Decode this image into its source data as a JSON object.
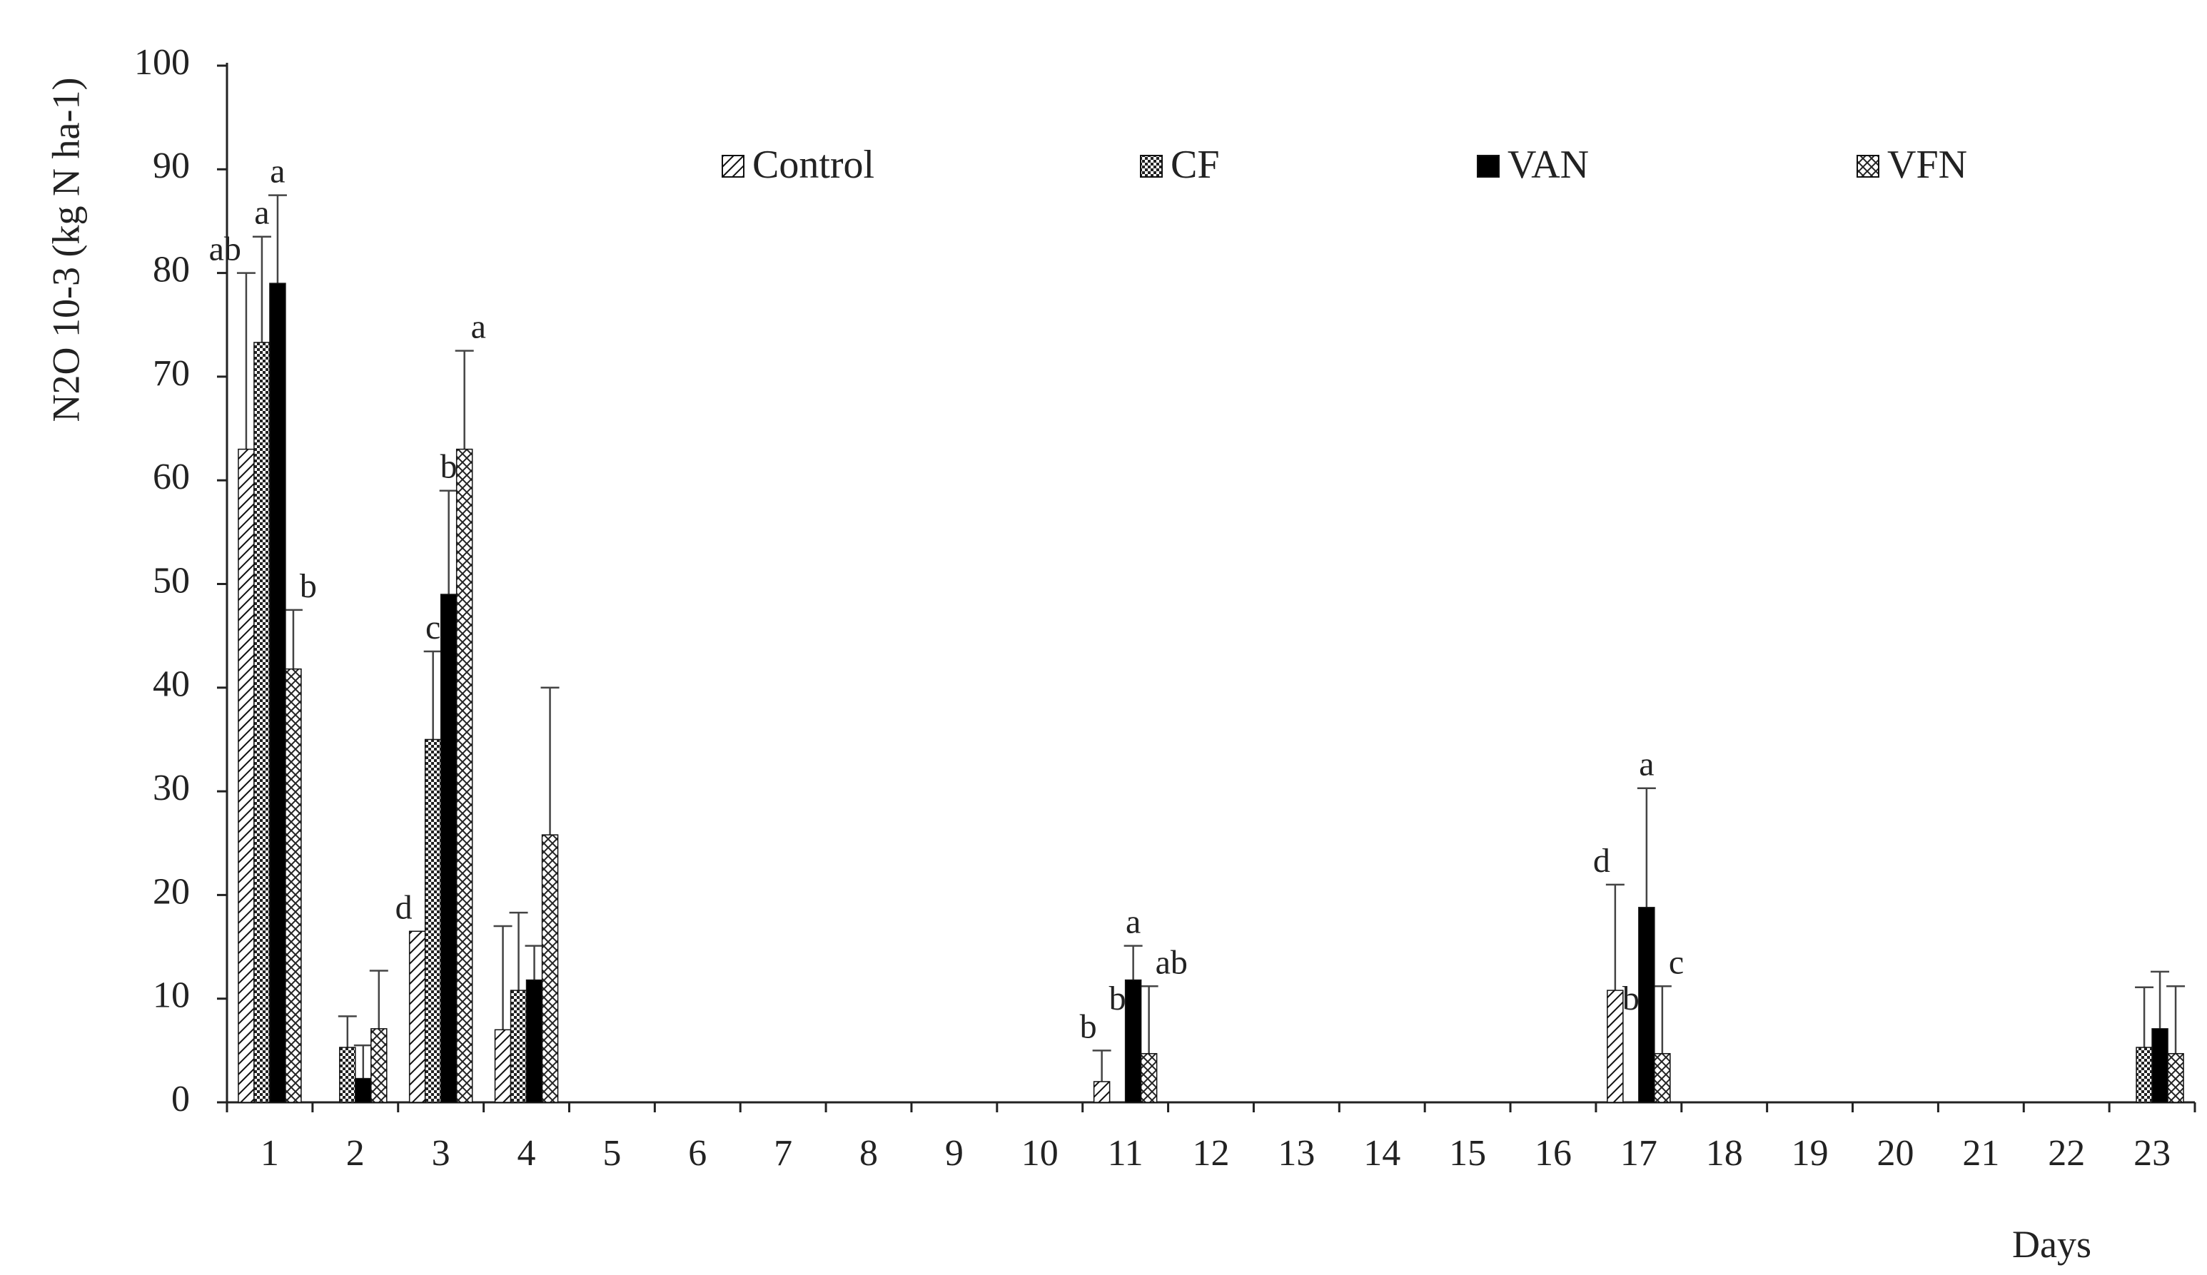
{
  "chart_data": {
    "type": "bar",
    "title": "",
    "ylabel": "N2O 10-3 (kg N ha-1)",
    "xlabel": "Days",
    "ylim": [
      0,
      100
    ],
    "yticks": [
      0,
      10,
      20,
      30,
      40,
      50,
      60,
      70,
      80,
      90,
      100
    ],
    "categories": [
      "1",
      "2",
      "3",
      "4",
      "5",
      "6",
      "7",
      "8",
      "9",
      "10",
      "11",
      "12",
      "13",
      "14",
      "15",
      "16",
      "17",
      "18",
      "19",
      "20",
      "21",
      "22",
      "23"
    ],
    "legend_position": "top, inside plot",
    "grid": false,
    "series": [
      {
        "name": "Control",
        "pattern": "diagonal-hatch",
        "values": [
          63,
          0,
          16.5,
          7,
          0,
          0,
          0,
          0,
          0,
          0,
          2,
          0,
          0,
          0,
          0,
          0,
          10.8,
          0,
          0,
          0,
          0,
          0,
          0
        ],
        "errors": [
          17,
          0,
          0,
          10,
          0,
          0,
          0,
          0,
          0,
          0,
          3,
          0,
          0,
          0,
          0,
          0,
          10.2,
          0,
          0,
          0,
          0,
          0,
          0
        ],
        "letters": [
          "ab",
          "",
          "d",
          "",
          "",
          "",
          "",
          "",
          "",
          "",
          "b",
          "",
          "",
          "",
          "",
          "",
          "d",
          "",
          "",
          "",
          "",
          "",
          ""
        ]
      },
      {
        "name": "CF",
        "pattern": "dotted-grid",
        "values": [
          73.3,
          5.3,
          35,
          10.8,
          0,
          0,
          0,
          0,
          0,
          0,
          0,
          0,
          0,
          0,
          0,
          0,
          0,
          0,
          0,
          0,
          0,
          0,
          5.3
        ],
        "errors": [
          10.2,
          3,
          8.5,
          7.5,
          0,
          0,
          0,
          0,
          0,
          0,
          0,
          0,
          0,
          0,
          0,
          0,
          0,
          0,
          0,
          0,
          0,
          0,
          5.8
        ],
        "letters": [
          "a",
          "",
          "c",
          "",
          "",
          "",
          "",
          "",
          "",
          "",
          "b",
          "",
          "",
          "",
          "",
          "",
          "b",
          "",
          "",
          "",
          "",
          "",
          ""
        ]
      },
      {
        "name": "VAN",
        "pattern": "solid-black",
        "values": [
          79,
          2.3,
          49,
          11.8,
          0,
          0,
          0,
          0,
          0,
          0,
          11.8,
          0,
          0,
          0,
          0,
          0,
          18.8,
          0,
          0,
          0,
          0,
          0,
          7.1
        ],
        "errors": [
          8.5,
          3.2,
          10,
          3.3,
          0,
          0,
          0,
          0,
          0,
          0,
          3.3,
          0,
          0,
          0,
          0,
          0,
          11.5,
          0,
          0,
          0,
          0,
          0,
          5.5
        ],
        "letters": [
          "a",
          "",
          "b",
          "",
          "",
          "",
          "",
          "",
          "",
          "",
          "a",
          "",
          "",
          "",
          "",
          "",
          "a",
          "",
          "",
          "",
          "",
          "",
          ""
        ]
      },
      {
        "name": "VFN",
        "pattern": "cross-hatch",
        "values": [
          41.8,
          7.1,
          63,
          25.8,
          0,
          0,
          0,
          0,
          0,
          0,
          4.7,
          0,
          0,
          0,
          0,
          0,
          4.7,
          0,
          0,
          0,
          0,
          0,
          4.7
        ],
        "errors": [
          5.7,
          5.6,
          9.5,
          14.2,
          0,
          0,
          0,
          0,
          0,
          0,
          6.5,
          0,
          0,
          0,
          0,
          0,
          6.5,
          0,
          0,
          0,
          0,
          0,
          6.5
        ],
        "letters": [
          "b",
          "",
          "a",
          "",
          "",
          "",
          "",
          "",
          "",
          "",
          "ab",
          "",
          "",
          "",
          "",
          "",
          "c",
          "",
          "",
          "",
          "",
          "",
          ""
        ]
      }
    ]
  }
}
